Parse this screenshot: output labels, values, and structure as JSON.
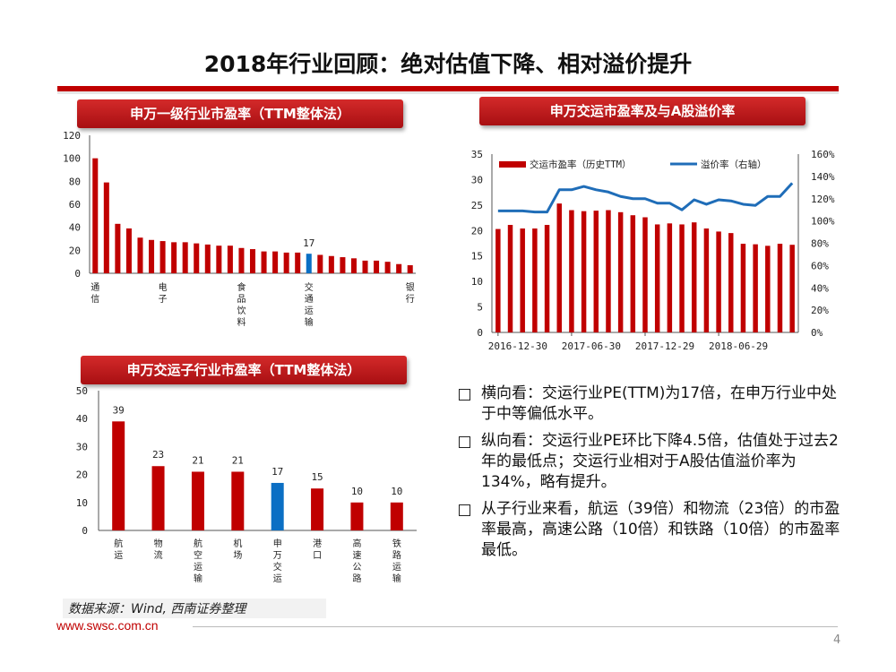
{
  "slide": {
    "title": "2018年行业回顾：绝对估值下降、相对溢价提升",
    "source": "数据来源：Wind, 西南证券整理",
    "footer_url": "www.swsc.com.cn",
    "page": "4"
  },
  "colors": {
    "red": "#c00000",
    "blue": "#0b6fc4",
    "line_blue": "#1f6db8"
  },
  "headers": {
    "chart1": "申万一级行业市盈率（TTM整体法）",
    "chart2": "申万交运市盈率及与A股溢价率",
    "chart3": "申万交运子行业市盈率（TTM整体法）"
  },
  "bullets": [
    "横向看：交运行业PE(TTM)为17倍，在申万行业中处于中等偏低水平。",
    "纵向看：交运行业PE环比下降4.5倍，估值处于过去2年的最低点；交运行业相对于A股估值溢价率为134%，略有提升。",
    "从子行业来看，航运（39倍）和物流（23倍）的市盈率最高，高速公路（10倍）和铁路（10倍）的市盈率最低。"
  ],
  "chart_data": [
    {
      "type": "bar",
      "title": "申万一级行业市盈率（TTM整体法）",
      "ylim": [
        0,
        120
      ],
      "yticks": [
        "0",
        "20",
        "40",
        "60",
        "80",
        "100",
        "120"
      ],
      "values": [
        100,
        79,
        43,
        39,
        31,
        29,
        28,
        27,
        27,
        26,
        25,
        24,
        24,
        22,
        21,
        19,
        19,
        18,
        18,
        17,
        16,
        15,
        14,
        13,
        11,
        11,
        10,
        8,
        7
      ],
      "highlight_index": 19,
      "highlight_label": "17",
      "category_labels": [
        {
          "index": 0,
          "text": "通信"
        },
        {
          "index": 6,
          "text": "电子"
        },
        {
          "index": 13,
          "text": "食品饮料"
        },
        {
          "index": 19,
          "text": "交通运输"
        },
        {
          "index": 28,
          "text": "银行"
        }
      ]
    },
    {
      "type": "bar+line",
      "title": "申万交运市盈率及与A股溢价率",
      "legend": [
        "交运市盈率（历史TTM）",
        "溢价率（右轴）"
      ],
      "ylim": [
        0,
        35
      ],
      "yticks": [
        "0",
        "5",
        "10",
        "15",
        "20",
        "25",
        "30",
        "35"
      ],
      "y2lim": [
        0,
        160
      ],
      "y2ticks": [
        "0%",
        "20%",
        "40%",
        "60%",
        "80%",
        "100%",
        "120%",
        "140%",
        "160%"
      ],
      "xlabels": [
        "2016-12-30",
        "2017-06-30",
        "2017-12-29",
        "2018-06-29"
      ],
      "pe": [
        20.3,
        21.1,
        20.4,
        20.4,
        21.1,
        25.3,
        24.0,
        23.8,
        23.9,
        24.0,
        23.6,
        23.0,
        22.6,
        21.2,
        21.4,
        21.2,
        21.6,
        20.4,
        19.8,
        19.5,
        17.4,
        17.3,
        17.0,
        17.4,
        17.2
      ],
      "premium": [
        109,
        109,
        109,
        108,
        108,
        128,
        128,
        131,
        128,
        126,
        122,
        120,
        120,
        116,
        116,
        110,
        119,
        115,
        119,
        118,
        115,
        114,
        122,
        122,
        134
      ]
    },
    {
      "type": "bar",
      "title": "申万交运子行业市盈率（TTM整体法）",
      "ylim": [
        0,
        50
      ],
      "yticks": [
        "0",
        "10",
        "20",
        "30",
        "40",
        "50"
      ],
      "categories": [
        "航运",
        "物流",
        "航空运输",
        "机场",
        "申万交运",
        "港口",
        "高速公路",
        "铁路运输"
      ],
      "values": [
        39,
        23,
        21,
        21,
        17,
        15,
        10,
        10
      ],
      "labels": [
        "39",
        "23",
        "21",
        "21",
        "17",
        "15",
        "10",
        "10"
      ],
      "highlight_index": 4
    }
  ]
}
